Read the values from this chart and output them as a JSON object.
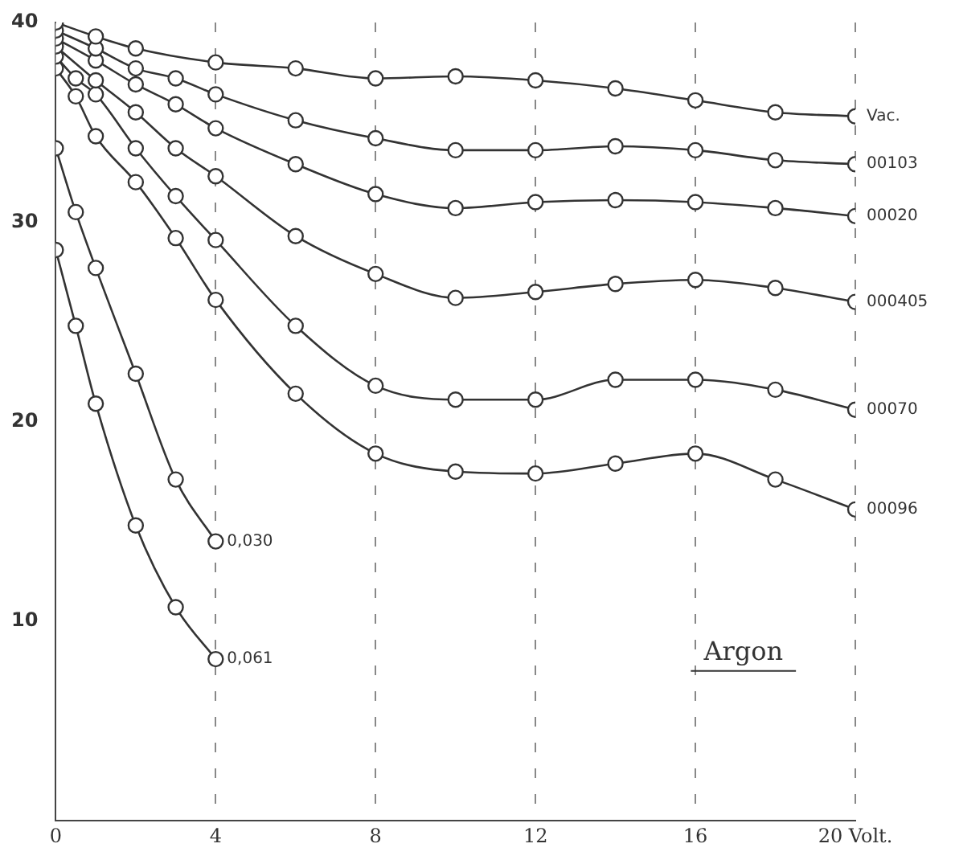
{
  "chart_data": {
    "type": "line",
    "annotations": [
      "Argon"
    ],
    "xlim": [
      0,
      20
    ],
    "xticks": [
      0,
      4,
      8,
      12,
      {
        "value": 16,
        "label": "16"
      },
      {
        "value": 20,
        "label": "20 Volt."
      }
    ],
    "ylim": [
      0,
      40
    ],
    "yticks": [
      10,
      20,
      30,
      40
    ],
    "grid": "x",
    "legend": false,
    "marker": "circle",
    "line_style": "solid",
    "series": [
      {
        "name": "Vac.",
        "color": "#333333",
        "x": [
          0,
          1,
          2,
          4,
          6,
          8,
          10,
          12,
          14,
          16,
          18,
          20
        ],
        "values": [
          40.0,
          39.3,
          38.7,
          38.0,
          37.7,
          37.2,
          37.3,
          37.1,
          36.7,
          36.1,
          35.5,
          35.3
        ]
      },
      {
        "name": "00103",
        "color": "#333333",
        "x": [
          0,
          1,
          2,
          3,
          4,
          6,
          8,
          10,
          12,
          14,
          16,
          18,
          20
        ],
        "values": [
          39.6,
          38.7,
          37.7,
          37.2,
          36.4,
          35.1,
          34.2,
          33.6,
          33.6,
          33.8,
          33.6,
          33.1,
          32.9
        ]
      },
      {
        "name": "00020",
        "color": "#333333",
        "x": [
          0,
          1,
          2,
          3,
          4,
          6,
          8,
          10,
          12,
          14,
          16,
          18,
          20
        ],
        "values": [
          39.2,
          38.1,
          36.9,
          35.9,
          34.7,
          32.9,
          31.4,
          30.7,
          31.0,
          31.1,
          31.0,
          30.7,
          30.3
        ]
      },
      {
        "name": "000405",
        "color": "#333333",
        "x": [
          0,
          1,
          2,
          3,
          4,
          6,
          8,
          10,
          12,
          14,
          16,
          18,
          20
        ],
        "values": [
          38.8,
          37.1,
          35.5,
          33.7,
          32.3,
          29.3,
          27.4,
          26.2,
          26.5,
          26.9,
          27.1,
          26.7,
          26.0
        ]
      },
      {
        "name": "00070",
        "color": "#333333",
        "x": [
          0,
          0.5,
          1,
          2,
          3,
          4,
          6,
          8,
          10,
          12,
          14,
          16,
          18,
          20
        ],
        "values": [
          38.3,
          37.2,
          36.4,
          33.7,
          31.3,
          29.1,
          24.8,
          21.8,
          21.1,
          21.1,
          22.1,
          22.1,
          21.6,
          20.6
        ]
      },
      {
        "name": "00096",
        "color": "#333333",
        "x": [
          0,
          0.5,
          1,
          2,
          3,
          4,
          6,
          8,
          10,
          12,
          14,
          16,
          18,
          20
        ],
        "values": [
          37.7,
          36.3,
          34.3,
          32.0,
          29.2,
          26.1,
          21.4,
          18.4,
          17.5,
          17.4,
          17.9,
          18.4,
          17.1,
          15.6
        ]
      },
      {
        "name": "0,030",
        "color": "#333333",
        "x": [
          0,
          0.5,
          1,
          2,
          3,
          4
        ],
        "values": [
          33.7,
          30.5,
          27.7,
          22.4,
          17.1,
          14.0
        ]
      },
      {
        "name": "0,061",
        "color": "#333333",
        "x": [
          0,
          0.5,
          1,
          2,
          3,
          4
        ],
        "values": [
          28.6,
          24.8,
          20.9,
          14.8,
          10.7,
          8.1
        ]
      }
    ]
  }
}
